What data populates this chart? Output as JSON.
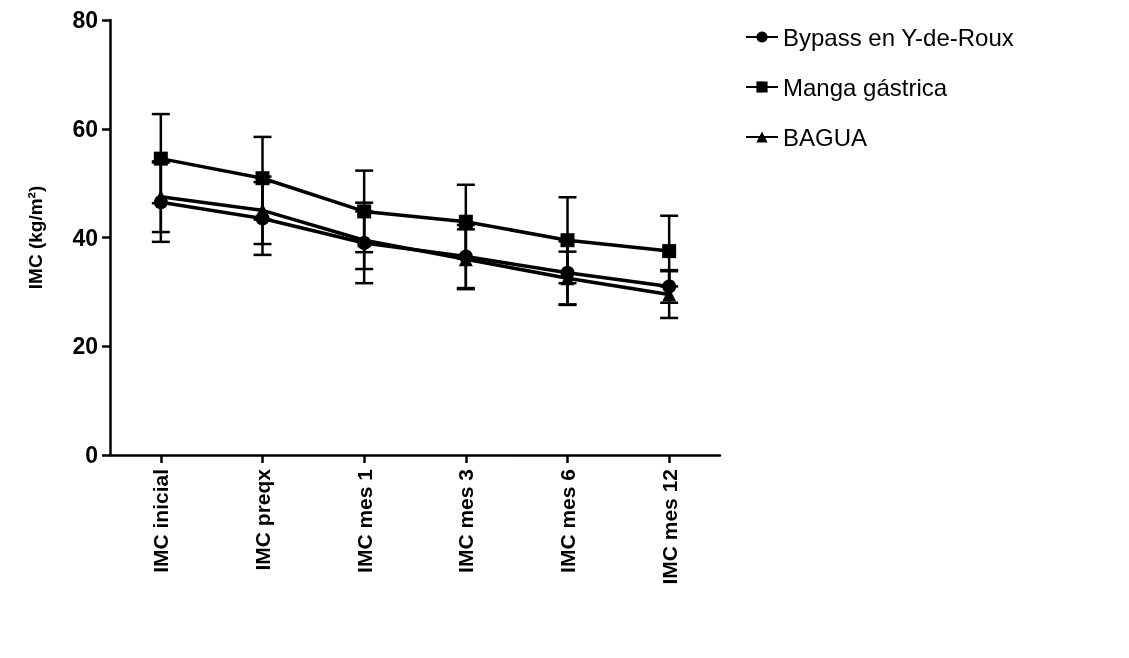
{
  "chart_data": {
    "type": "line",
    "ylabel": "IMC (kg/m²)",
    "categories": [
      "IMC inicial",
      "IMC preqx",
      "IMC mes 1",
      "IMC mes 3",
      "IMC mes 6",
      "IMC mes 12"
    ],
    "ylim": [
      0,
      80
    ],
    "yticks": [
      0,
      20,
      40,
      60,
      80
    ],
    "grid": false,
    "legend": "top right",
    "line_style": "solid",
    "series": [
      {
        "name": "Bypass en Y-de-Roux",
        "color": "#000000",
        "marker": "circle",
        "values": [
          46.5,
          43.5,
          39,
          36.5,
          33.5,
          31
        ],
        "errors": [
          7.3,
          6.7,
          7.4,
          5.8,
          5.8,
          3
        ]
      },
      {
        "name": "Manga gástrica",
        "color": "#000000",
        "marker": "square",
        "values": [
          54.5,
          50.9,
          44.8,
          42.9,
          39.5,
          37.5
        ],
        "errors": [
          8.2,
          7.6,
          7.5,
          6.8,
          7.9,
          6.5
        ]
      },
      {
        "name": "BAGUA",
        "color": "#000000",
        "marker": "triangle",
        "values": [
          47.5,
          45,
          39.5,
          36,
          32.5,
          29.5
        ],
        "errors": [
          6.5,
          6.2,
          5.3,
          5.5,
          4.9,
          4.3
        ]
      }
    ]
  }
}
